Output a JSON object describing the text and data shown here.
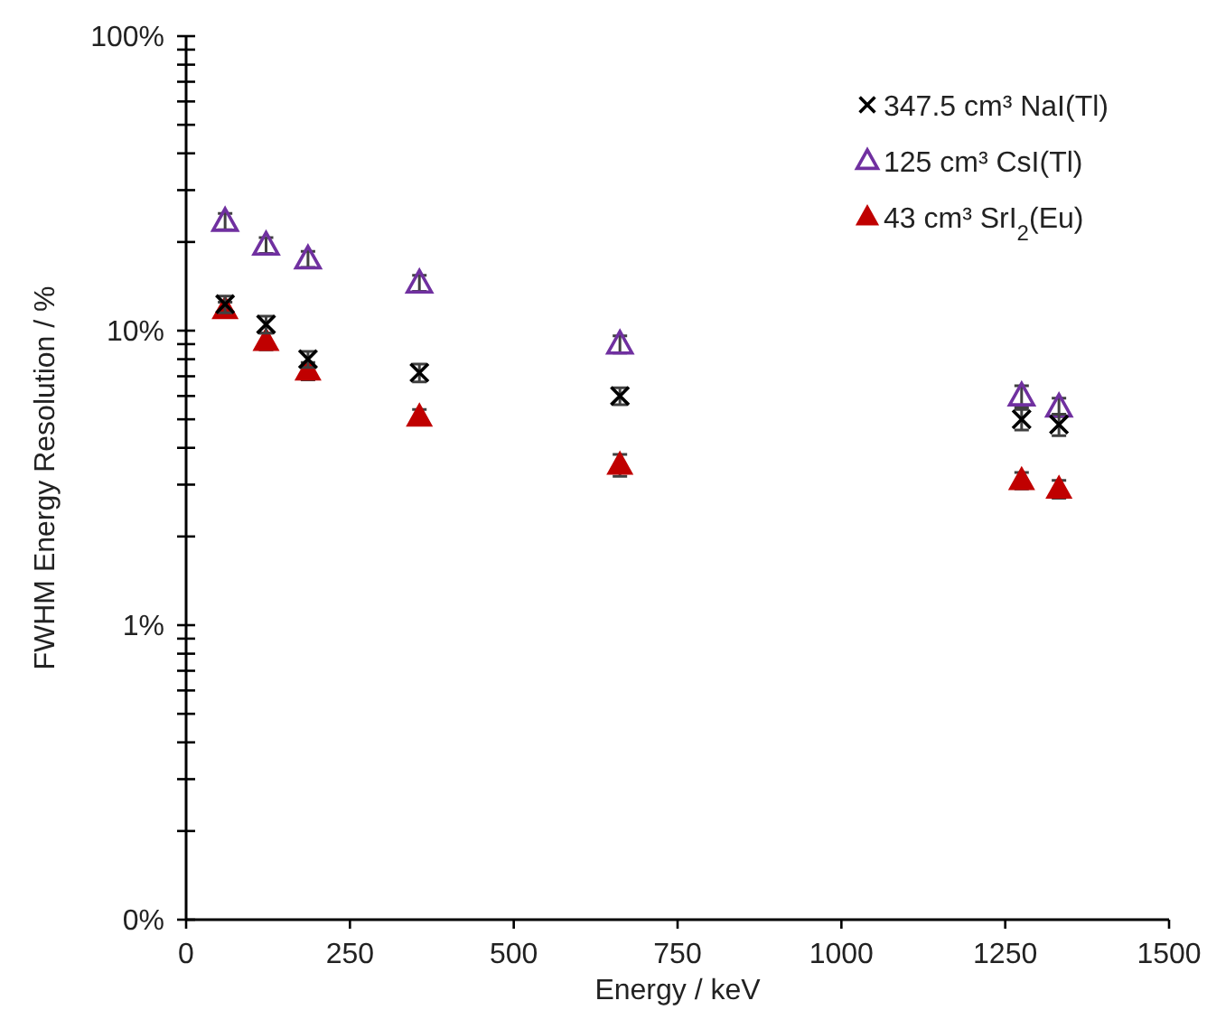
{
  "chart_data": {
    "type": "scatter",
    "xlabel": "Energy / keV",
    "ylabel": "FWHM Energy Resolution / %",
    "x": [
      59.5,
      122,
      186,
      356,
      662,
      1275,
      1332
    ],
    "xlim": [
      0,
      1500
    ],
    "xticks": [
      0,
      250,
      500,
      750,
      1000,
      1250,
      1500
    ],
    "ylim": [
      0.1,
      100
    ],
    "log": true,
    "yticks": [
      {
        "value": 0.1,
        "label": "0%"
      },
      {
        "value": 0.2,
        "label": null
      },
      {
        "value": 0.3,
        "label": null
      },
      {
        "value": 0.4,
        "label": null
      },
      {
        "value": 0.5,
        "label": null
      },
      {
        "value": 0.6,
        "label": null
      },
      {
        "value": 0.7,
        "label": null
      },
      {
        "value": 0.8,
        "label": null
      },
      {
        "value": 0.9,
        "label": null
      },
      {
        "value": 1,
        "label": "1%"
      },
      {
        "value": 2,
        "label": null
      },
      {
        "value": 3,
        "label": null
      },
      {
        "value": 4,
        "label": null
      },
      {
        "value": 5,
        "label": null
      },
      {
        "value": 6,
        "label": null
      },
      {
        "value": 7,
        "label": null
      },
      {
        "value": 8,
        "label": null
      },
      {
        "value": 9,
        "label": null
      },
      {
        "value": 10,
        "label": "10%"
      },
      {
        "value": 20,
        "label": null
      },
      {
        "value": 30,
        "label": null
      },
      {
        "value": 40,
        "label": null
      },
      {
        "value": 50,
        "label": null
      },
      {
        "value": 60,
        "label": null
      },
      {
        "value": 70,
        "label": null
      },
      {
        "value": 80,
        "label": null
      },
      {
        "value": 90,
        "label": null
      },
      {
        "value": 100,
        "label": "100%"
      }
    ],
    "grid": false,
    "legend": "top right",
    "series": [
      {
        "name": "347.5 cm³ NaI(Tl)",
        "color": "#000000",
        "marker": "cross",
        "values": [
          12.3,
          10.5,
          8.0,
          7.2,
          6.0,
          5.0,
          4.8
        ],
        "errors": [
          0.8,
          0.7,
          0.5,
          0.5,
          0.4,
          0.4,
          0.4
        ]
      },
      {
        "name": "125 cm³ CsI(Tl)",
        "color": "#7030a0",
        "marker": "triangle-open",
        "values": [
          23.5,
          19.5,
          17.5,
          14.5,
          9.0,
          6.0,
          5.5
        ],
        "errors": [
          1.5,
          1.2,
          1.1,
          0.9,
          0.6,
          0.5,
          0.4
        ]
      },
      {
        "name": "43 cm³ SrI$_{2}$(Eu)",
        "color": "#c00000",
        "marker": "triangle",
        "values": [
          11.8,
          9.2,
          7.3,
          5.1,
          3.5,
          3.1,
          2.9
        ],
        "errors": [
          0.7,
          0.6,
          0.5,
          0.3,
          0.3,
          0.2,
          0.2
        ]
      }
    ]
  }
}
